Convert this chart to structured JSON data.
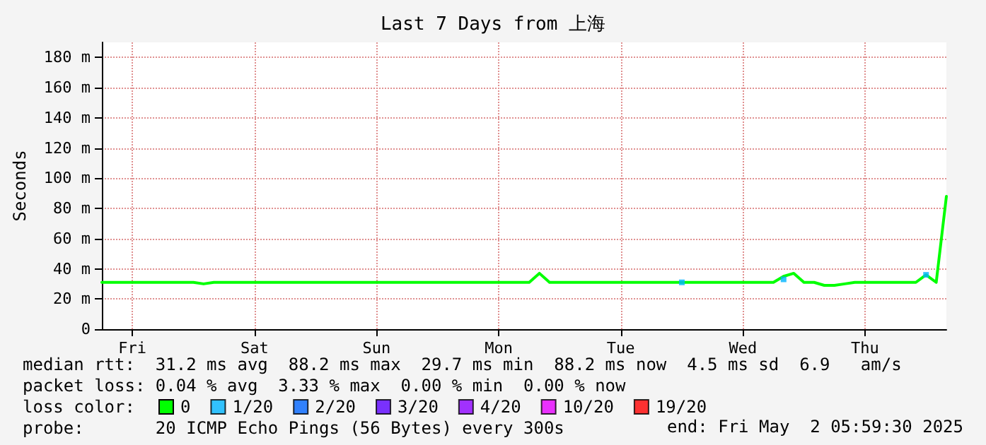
{
  "chart_data": {
    "type": "line",
    "title": "Last 7 Days from 上海",
    "ylabel": "Seconds",
    "categories": [
      null,
      null,
      null,
      "Fri",
      null,
      null,
      null,
      null,
      null,
      null,
      null,
      null,
      null,
      null,
      null,
      "Sat",
      null,
      null,
      null,
      null,
      null,
      null,
      null,
      null,
      null,
      null,
      null,
      "Sun",
      null,
      null,
      null,
      null,
      null,
      null,
      null,
      null,
      null,
      null,
      null,
      "Mon",
      null,
      null,
      null,
      null,
      null,
      null,
      null,
      null,
      null,
      null,
      null,
      "Tue",
      null,
      null,
      null,
      null,
      null,
      null,
      null,
      null,
      null,
      null,
      null,
      "Wed",
      null,
      null,
      null,
      null,
      null,
      null,
      null,
      null,
      null,
      null,
      null,
      "Thu",
      null,
      null,
      null,
      null,
      null,
      null,
      null,
      null
    ],
    "ylim": [
      0,
      190
    ],
    "yticks": [
      0,
      {
        "value": 20,
        "label": "20 m"
      },
      {
        "value": 40,
        "label": "40 m"
      },
      {
        "value": 60,
        "label": "60 m"
      },
      {
        "value": 80,
        "label": "80 m"
      },
      {
        "value": 100,
        "label": "100 m"
      },
      {
        "value": 120,
        "label": "120 m"
      },
      {
        "value": 140,
        "label": "140 m"
      },
      {
        "value": 160,
        "label": "160 m"
      },
      {
        "value": 180,
        "label": "180 m"
      }
    ],
    "grid": true,
    "legend": "bottom left",
    "marker": "none",
    "line_style": "solid",
    "series": [
      {
        "name": "0",
        "color": "#00ff00",
        "values": [
          31,
          31,
          31,
          31,
          31,
          31,
          31,
          31,
          31,
          31,
          30,
          31,
          31,
          31,
          31,
          31,
          31,
          31,
          31,
          31,
          31,
          31,
          31,
          31,
          31,
          31,
          31,
          31,
          31,
          31,
          31,
          31,
          31,
          31,
          31,
          31,
          31,
          31,
          31,
          31,
          31,
          31,
          31,
          37,
          31,
          31,
          31,
          31,
          31,
          31,
          31,
          31,
          31,
          31,
          31,
          31,
          31,
          31,
          31,
          31,
          31,
          31,
          31,
          31,
          31,
          31,
          31,
          35,
          37,
          31,
          31,
          29,
          29,
          30,
          31,
          31,
          31,
          31,
          31,
          31,
          31,
          36,
          31,
          88
        ]
      },
      {
        "name": "1/20",
        "color": "#00b4ff",
        "type": "scatter",
        "marker": "square",
        "values": [
          null,
          null,
          null,
          null,
          null,
          null,
          null,
          null,
          null,
          null,
          null,
          null,
          null,
          null,
          null,
          null,
          null,
          null,
          null,
          null,
          null,
          null,
          null,
          null,
          null,
          null,
          null,
          null,
          null,
          null,
          null,
          null,
          null,
          null,
          null,
          null,
          null,
          null,
          null,
          null,
          null,
          null,
          null,
          null,
          null,
          null,
          null,
          null,
          null,
          null,
          null,
          null,
          null,
          null,
          null,
          null,
          null,
          31,
          null,
          null,
          null,
          null,
          null,
          null,
          null,
          null,
          null,
          33,
          null,
          null,
          null,
          null,
          null,
          null,
          null,
          null,
          null,
          null,
          null,
          null,
          null,
          36,
          null,
          null
        ]
      },
      {
        "name": "2/20",
        "color": "#0064ff",
        "type": "scatter",
        "marker": "square",
        "values": [
          null,
          null,
          null,
          null,
          null,
          null,
          null,
          null,
          null,
          null,
          null,
          null,
          null,
          null,
          null,
          null,
          null,
          null,
          null,
          null,
          null,
          null,
          null,
          null,
          null,
          null,
          null,
          null,
          null,
          null,
          null,
          null,
          null,
          null,
          null,
          null,
          null,
          null,
          null,
          null,
          null,
          null,
          null,
          null,
          null,
          null,
          null,
          null,
          null,
          null,
          null,
          null,
          null,
          null,
          null,
          null,
          null,
          null,
          null,
          null,
          null,
          null,
          null,
          null,
          null,
          null,
          null,
          null,
          null,
          null,
          null,
          null,
          null,
          null,
          null,
          null,
          null,
          null,
          null,
          null,
          null,
          null,
          null,
          null
        ]
      },
      {
        "name": "3/20",
        "color": "#5a00ff",
        "type": "scatter",
        "marker": "square",
        "values": [
          null,
          null,
          null,
          null,
          null,
          null,
          null,
          null,
          null,
          null,
          null,
          null,
          null,
          null,
          null,
          null,
          null,
          null,
          null,
          null,
          null,
          null,
          null,
          null,
          null,
          null,
          null,
          null,
          null,
          null,
          null,
          null,
          null,
          null,
          null,
          null,
          null,
          null,
          null,
          null,
          null,
          null,
          null,
          null,
          null,
          null,
          null,
          null,
          null,
          null,
          null,
          null,
          null,
          null,
          null,
          null,
          null,
          null,
          null,
          null,
          null,
          null,
          null,
          null,
          null,
          null,
          null,
          null,
          null,
          null,
          null,
          null,
          null,
          null,
          null,
          null,
          null,
          null,
          null,
          null,
          null,
          null,
          null,
          null
        ]
      },
      {
        "name": "4/20",
        "color": "#8c00ff",
        "type": "scatter",
        "marker": "square",
        "values": [
          null,
          null,
          null,
          null,
          null,
          null,
          null,
          null,
          null,
          null,
          null,
          null,
          null,
          null,
          null,
          null,
          null,
          null,
          null,
          null,
          null,
          null,
          null,
          null,
          null,
          null,
          null,
          null,
          null,
          null,
          null,
          null,
          null,
          null,
          null,
          null,
          null,
          null,
          null,
          null,
          null,
          null,
          null,
          null,
          null,
          null,
          null,
          null,
          null,
          null,
          null,
          null,
          null,
          null,
          null,
          null,
          null,
          null,
          null,
          null,
          null,
          null,
          null,
          null,
          null,
          null,
          null,
          null,
          null,
          null,
          null,
          null,
          null,
          null,
          null,
          null,
          null,
          null,
          null,
          null,
          null,
          null,
          null,
          null
        ]
      },
      {
        "name": "10/20",
        "color": "#e600ff",
        "type": "scatter",
        "marker": "square",
        "values": [
          null,
          null,
          null,
          null,
          null,
          null,
          null,
          null,
          null,
          null,
          null,
          null,
          null,
          null,
          null,
          null,
          null,
          null,
          null,
          null,
          null,
          null,
          null,
          null,
          null,
          null,
          null,
          null,
          null,
          null,
          null,
          null,
          null,
          null,
          null,
          null,
          null,
          null,
          null,
          null,
          null,
          null,
          null,
          null,
          null,
          null,
          null,
          null,
          null,
          null,
          null,
          null,
          null,
          null,
          null,
          null,
          null,
          null,
          null,
          null,
          null,
          null,
          null,
          null,
          null,
          null,
          null,
          null,
          null,
          null,
          null,
          null,
          null,
          null,
          null,
          null,
          null,
          null,
          null,
          null,
          null,
          null,
          null,
          null
        ]
      },
      {
        "name": "19/20",
        "color": "#ff0000",
        "type": "scatter",
        "marker": "square",
        "values": [
          null,
          null,
          null,
          null,
          null,
          null,
          null,
          null,
          null,
          null,
          null,
          null,
          null,
          null,
          null,
          null,
          null,
          null,
          null,
          null,
          null,
          null,
          null,
          null,
          null,
          null,
          null,
          null,
          null,
          null,
          null,
          null,
          null,
          null,
          null,
          null,
          null,
          null,
          null,
          null,
          null,
          null,
          null,
          null,
          null,
          null,
          null,
          null,
          null,
          null,
          null,
          null,
          null,
          null,
          null,
          null,
          null,
          null,
          null,
          null,
          null,
          null,
          null,
          null,
          null,
          null,
          null,
          null,
          null,
          null,
          null,
          null,
          null,
          null,
          null,
          null,
          null,
          null,
          null,
          null,
          null,
          null,
          null,
          null
        ]
      }
    ],
    "annotations": [
      "median rtt:  31.2 ms avg  88.2 ms max  29.7 ms min  88.2 ms now  4.5 ms sd  6.9   am/s",
      "packet loss: 0.04 % avg  3.33 % max  0.00 % min  0.00 % now",
      "loss color:",
      "probe:       20 ICMP Echo Pings (56 Bytes) every 300s",
      "end: Fri May  2 05:59:30 2025"
    ]
  }
}
